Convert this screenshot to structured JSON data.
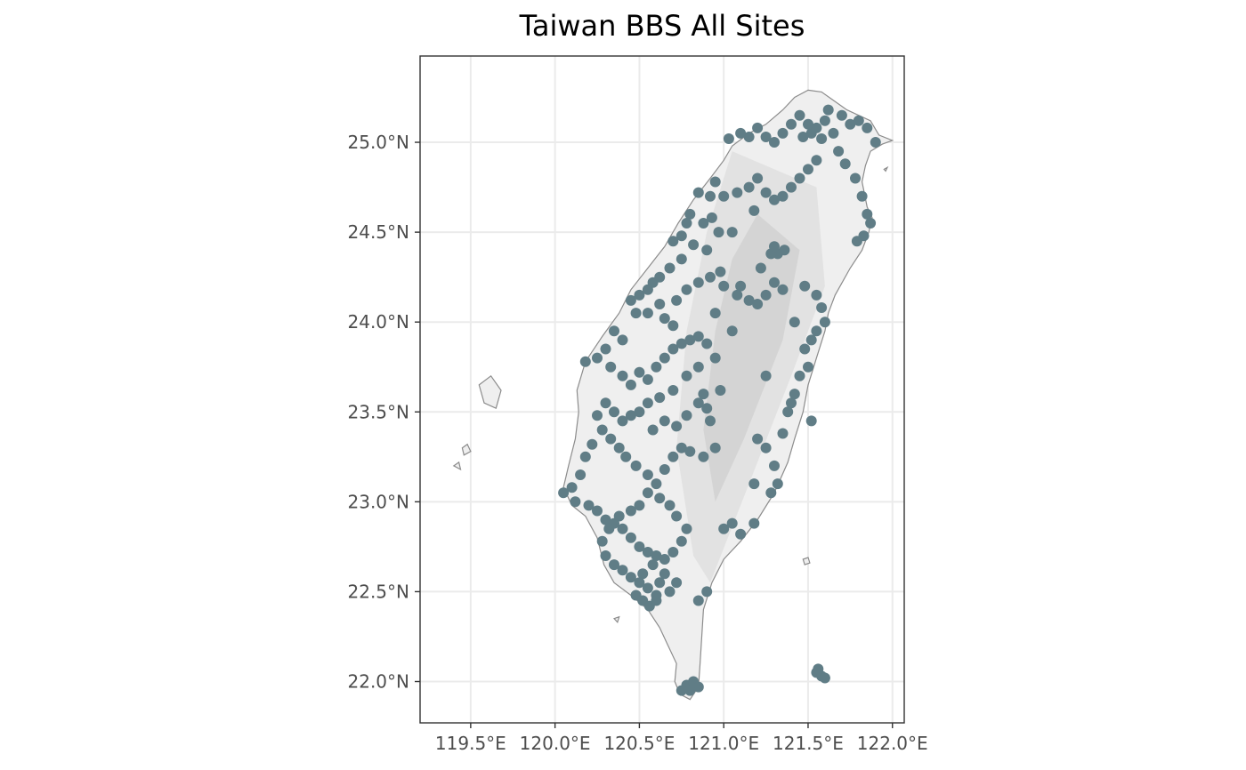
{
  "title": "Taiwan BBS All Sites",
  "colors": {
    "point": "#607d86",
    "grid": "#ebebeb",
    "panel_border": "#333333",
    "coastline": "#8c8c8c",
    "land_low": "#efefef",
    "land_mid": "#e2e2e2",
    "land_high": "#d4d4d4",
    "tick_text": "#4d4d4d"
  },
  "axes": {
    "x_ticks": [
      {
        "value": 119.5,
        "label": "119.5°E"
      },
      {
        "value": 120.0,
        "label": "120.0°E"
      },
      {
        "value": 120.5,
        "label": "120.5°E"
      },
      {
        "value": 121.0,
        "label": "121.0°E"
      },
      {
        "value": 121.5,
        "label": "121.5°E"
      },
      {
        "value": 122.0,
        "label": "122.0°E"
      }
    ],
    "y_ticks": [
      {
        "value": 22.0,
        "label": "22.0°N"
      },
      {
        "value": 22.5,
        "label": "22.5°N"
      },
      {
        "value": 23.0,
        "label": "23.0°N"
      },
      {
        "value": 23.5,
        "label": "23.5°N"
      },
      {
        "value": 24.0,
        "label": "24.0°N"
      },
      {
        "value": 24.5,
        "label": "24.5°N"
      },
      {
        "value": 25.0,
        "label": "25.0°N"
      }
    ],
    "xlim": [
      119.2,
      122.07
    ],
    "ylim": [
      21.77,
      25.48
    ]
  },
  "sites": [
    [
      121.52,
      25.05
    ],
    [
      121.55,
      25.08
    ],
    [
      121.58,
      25.02
    ],
    [
      121.5,
      25.1
    ],
    [
      121.47,
      25.03
    ],
    [
      121.6,
      25.12
    ],
    [
      121.65,
      25.05
    ],
    [
      121.45,
      25.15
    ],
    [
      121.4,
      25.1
    ],
    [
      121.35,
      25.05
    ],
    [
      121.3,
      25.0
    ],
    [
      121.25,
      25.03
    ],
    [
      121.2,
      25.08
    ],
    [
      121.15,
      25.03
    ],
    [
      121.1,
      25.05
    ],
    [
      121.03,
      25.02
    ],
    [
      121.62,
      25.18
    ],
    [
      121.7,
      25.15
    ],
    [
      121.75,
      25.1
    ],
    [
      121.8,
      25.12
    ],
    [
      121.85,
      25.08
    ],
    [
      121.9,
      25.0
    ],
    [
      121.68,
      24.95
    ],
    [
      121.72,
      24.88
    ],
    [
      121.78,
      24.8
    ],
    [
      121.82,
      24.7
    ],
    [
      121.85,
      24.6
    ],
    [
      121.87,
      24.55
    ],
    [
      121.83,
      24.48
    ],
    [
      121.79,
      24.45
    ],
    [
      121.55,
      24.9
    ],
    [
      121.5,
      24.85
    ],
    [
      121.45,
      24.8
    ],
    [
      121.4,
      24.75
    ],
    [
      121.35,
      24.7
    ],
    [
      121.3,
      24.68
    ],
    [
      121.25,
      24.72
    ],
    [
      121.2,
      24.8
    ],
    [
      121.15,
      24.75
    ],
    [
      121.08,
      24.72
    ],
    [
      121.0,
      24.7
    ],
    [
      120.95,
      24.78
    ],
    [
      120.92,
      24.7
    ],
    [
      120.85,
      24.72
    ],
    [
      120.8,
      24.6
    ],
    [
      120.88,
      24.55
    ],
    [
      120.93,
      24.58
    ],
    [
      120.78,
      24.55
    ],
    [
      120.75,
      24.48
    ],
    [
      120.7,
      24.45
    ],
    [
      120.82,
      24.43
    ],
    [
      120.9,
      24.4
    ],
    [
      120.97,
      24.5
    ],
    [
      121.05,
      24.5
    ],
    [
      121.18,
      24.62
    ],
    [
      121.32,
      24.38
    ],
    [
      121.36,
      24.4
    ],
    [
      121.28,
      24.38
    ],
    [
      121.3,
      24.42
    ],
    [
      120.75,
      24.35
    ],
    [
      120.68,
      24.3
    ],
    [
      120.62,
      24.25
    ],
    [
      120.58,
      24.22
    ],
    [
      120.55,
      24.18
    ],
    [
      120.5,
      24.15
    ],
    [
      120.45,
      24.12
    ],
    [
      120.48,
      24.05
    ],
    [
      120.55,
      24.05
    ],
    [
      120.62,
      24.1
    ],
    [
      120.65,
      24.02
    ],
    [
      120.7,
      23.98
    ],
    [
      120.72,
      24.12
    ],
    [
      120.78,
      24.18
    ],
    [
      120.85,
      24.22
    ],
    [
      120.92,
      24.25
    ],
    [
      120.98,
      24.28
    ],
    [
      121.0,
      24.2
    ],
    [
      121.08,
      24.15
    ],
    [
      121.15,
      24.12
    ],
    [
      121.2,
      24.1
    ],
    [
      121.25,
      24.15
    ],
    [
      121.3,
      24.22
    ],
    [
      121.35,
      24.18
    ],
    [
      121.48,
      24.2
    ],
    [
      121.55,
      24.15
    ],
    [
      121.58,
      24.08
    ],
    [
      121.6,
      24.0
    ],
    [
      121.55,
      23.95
    ],
    [
      121.52,
      23.9
    ],
    [
      121.42,
      24.0
    ],
    [
      120.35,
      23.95
    ],
    [
      120.4,
      23.9
    ],
    [
      120.3,
      23.85
    ],
    [
      120.25,
      23.8
    ],
    [
      120.18,
      23.78
    ],
    [
      120.33,
      23.75
    ],
    [
      120.4,
      23.7
    ],
    [
      120.45,
      23.65
    ],
    [
      120.5,
      23.72
    ],
    [
      120.55,
      23.68
    ],
    [
      120.6,
      23.75
    ],
    [
      120.65,
      23.8
    ],
    [
      120.7,
      23.85
    ],
    [
      120.75,
      23.88
    ],
    [
      120.8,
      23.9
    ],
    [
      120.85,
      23.92
    ],
    [
      120.9,
      23.88
    ],
    [
      120.95,
      23.8
    ],
    [
      120.85,
      23.75
    ],
    [
      120.78,
      23.7
    ],
    [
      120.7,
      23.62
    ],
    [
      120.62,
      23.58
    ],
    [
      120.55,
      23.55
    ],
    [
      120.5,
      23.5
    ],
    [
      120.45,
      23.48
    ],
    [
      120.4,
      23.45
    ],
    [
      120.35,
      23.5
    ],
    [
      120.3,
      23.55
    ],
    [
      120.25,
      23.48
    ],
    [
      120.28,
      23.4
    ],
    [
      120.33,
      23.35
    ],
    [
      120.38,
      23.3
    ],
    [
      120.42,
      23.25
    ],
    [
      120.48,
      23.2
    ],
    [
      120.55,
      23.15
    ],
    [
      120.6,
      23.1
    ],
    [
      120.65,
      23.18
    ],
    [
      120.7,
      23.25
    ],
    [
      120.75,
      23.3
    ],
    [
      120.8,
      23.28
    ],
    [
      120.88,
      23.25
    ],
    [
      120.95,
      23.3
    ],
    [
      120.92,
      23.45
    ],
    [
      120.9,
      23.52
    ],
    [
      120.88,
      23.6
    ],
    [
      120.85,
      23.55
    ],
    [
      120.78,
      23.48
    ],
    [
      120.72,
      23.42
    ],
    [
      120.65,
      23.45
    ],
    [
      120.58,
      23.4
    ],
    [
      120.22,
      23.32
    ],
    [
      120.18,
      23.25
    ],
    [
      120.15,
      23.15
    ],
    [
      120.1,
      23.08
    ],
    [
      120.05,
      23.05
    ],
    [
      120.12,
      23.0
    ],
    [
      120.2,
      22.98
    ],
    [
      120.25,
      22.95
    ],
    [
      120.3,
      22.9
    ],
    [
      120.35,
      22.88
    ],
    [
      120.4,
      22.85
    ],
    [
      120.45,
      22.8
    ],
    [
      120.5,
      22.75
    ],
    [
      120.55,
      22.72
    ],
    [
      120.6,
      22.7
    ],
    [
      120.65,
      22.68
    ],
    [
      120.7,
      22.72
    ],
    [
      120.75,
      22.78
    ],
    [
      120.78,
      22.85
    ],
    [
      120.72,
      22.92
    ],
    [
      120.68,
      22.98
    ],
    [
      120.62,
      23.02
    ],
    [
      120.55,
      23.05
    ],
    [
      120.5,
      22.98
    ],
    [
      120.45,
      22.95
    ],
    [
      120.38,
      22.92
    ],
    [
      120.32,
      22.85
    ],
    [
      120.28,
      22.78
    ],
    [
      120.3,
      22.7
    ],
    [
      120.35,
      22.65
    ],
    [
      120.4,
      22.62
    ],
    [
      120.45,
      22.58
    ],
    [
      120.5,
      22.55
    ],
    [
      120.55,
      22.52
    ],
    [
      120.6,
      22.48
    ],
    [
      120.62,
      22.55
    ],
    [
      120.65,
      22.6
    ],
    [
      120.58,
      22.65
    ],
    [
      120.52,
      22.6
    ],
    [
      120.48,
      22.48
    ],
    [
      120.52,
      22.45
    ],
    [
      120.56,
      22.42
    ],
    [
      120.6,
      22.45
    ],
    [
      120.68,
      22.5
    ],
    [
      120.72,
      22.55
    ],
    [
      120.85,
      22.45
    ],
    [
      120.9,
      22.5
    ],
    [
      120.75,
      21.95
    ],
    [
      120.78,
      21.98
    ],
    [
      120.82,
      22.0
    ],
    [
      120.85,
      21.97
    ],
    [
      120.8,
      21.95
    ],
    [
      121.55,
      22.05
    ],
    [
      121.58,
      22.03
    ],
    [
      121.56,
      22.07
    ],
    [
      121.6,
      22.02
    ],
    [
      121.2,
      23.35
    ],
    [
      121.25,
      23.3
    ],
    [
      121.3,
      23.2
    ],
    [
      121.32,
      23.1
    ],
    [
      121.35,
      23.38
    ],
    [
      121.38,
      23.5
    ],
    [
      121.4,
      23.55
    ],
    [
      121.42,
      23.6
    ],
    [
      121.45,
      23.7
    ],
    [
      121.5,
      23.75
    ],
    [
      121.48,
      23.85
    ],
    [
      121.52,
      23.45
    ],
    [
      121.28,
      23.05
    ],
    [
      121.18,
      22.88
    ],
    [
      121.1,
      22.82
    ],
    [
      121.05,
      22.88
    ],
    [
      121.0,
      22.85
    ],
    [
      121.18,
      23.1
    ],
    [
      121.25,
      23.7
    ],
    [
      120.95,
      24.05
    ],
    [
      121.1,
      24.2
    ],
    [
      121.22,
      24.3
    ],
    [
      120.98,
      23.62
    ],
    [
      121.05,
      23.95
    ]
  ]
}
